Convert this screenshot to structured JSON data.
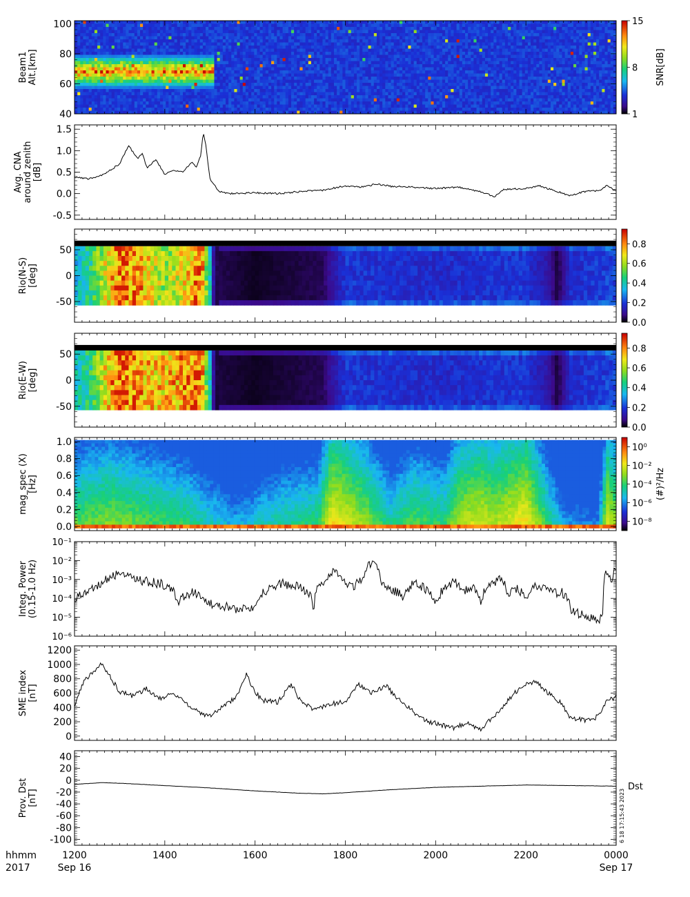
{
  "time_axis": {
    "row1_label": "hhmm",
    "row2_label": "2017",
    "ticks": [
      {
        "hour": 12,
        "label": "1200",
        "date": "Sep 16"
      },
      {
        "hour": 14,
        "label": "1400",
        "date": ""
      },
      {
        "hour": 16,
        "label": "1600",
        "date": ""
      },
      {
        "hour": 18,
        "label": "1800",
        "date": ""
      },
      {
        "hour": 20,
        "label": "2000",
        "date": ""
      },
      {
        "hour": 22,
        "label": "2200",
        "date": ""
      },
      {
        "hour": 24,
        "label": "0000",
        "date": "Sep 17"
      }
    ]
  },
  "annotation": {
    "stamp": "6 18 17:15:43 2023",
    "dst_tag": "Dst"
  },
  "chart_data": [
    {
      "type": "heatmap",
      "id": "beam1",
      "ylabel": [
        "Beam1",
        "Alt.[km]"
      ],
      "x_range": [
        12,
        24
      ],
      "ylim": [
        40,
        102
      ],
      "yticks": [
        40,
        60,
        80,
        100
      ],
      "colorbar": {
        "label": "SNR[dB]",
        "range": [
          1,
          15
        ],
        "ticks": [
          {
            "v": 1,
            "label": "1"
          },
          {
            "v": 8,
            "label": "8"
          },
          {
            "v": 15,
            "label": "15"
          }
        ]
      },
      "features": [
        {
          "x": [
            12.0,
            15.1
          ],
          "y": [
            58,
            78
          ],
          "level": "high",
          "desc_hidden": true
        }
      ]
    },
    {
      "type": "line",
      "id": "cna",
      "ylabel": [
        "Avg. CNA",
        "around zenith",
        "[dB]"
      ],
      "x_range": [
        12,
        24
      ],
      "ylim": [
        -0.6,
        1.6
      ],
      "yticks": [
        {
          "v": -0.5,
          "label": "-0.5"
        },
        {
          "v": 0.0,
          "label": "0.0"
        },
        {
          "v": 0.5,
          "label": "0.5"
        },
        {
          "v": 1.0,
          "label": "1.0"
        },
        {
          "v": 1.5,
          "label": "1.5"
        }
      ],
      "x": [
        12.0,
        12.3,
        12.6,
        12.8,
        13.0,
        13.2,
        13.4,
        13.5,
        13.6,
        13.8,
        14.0,
        14.2,
        14.4,
        14.6,
        14.7,
        14.8,
        14.85,
        14.9,
        15.0,
        15.1,
        15.2,
        15.4,
        16.0,
        16.5,
        17.0,
        17.5,
        18.0,
        18.3,
        18.7,
        19.0,
        19.5,
        20.0,
        20.5,
        21.0,
        21.3,
        21.5,
        22.0,
        22.3,
        22.6,
        23.0,
        23.3,
        23.6,
        23.8,
        24.0
      ],
      "y": [
        0.38,
        0.35,
        0.42,
        0.55,
        0.7,
        1.12,
        0.8,
        0.95,
        0.6,
        0.8,
        0.45,
        0.55,
        0.5,
        0.75,
        0.6,
        0.9,
        1.42,
        1.2,
        0.35,
        0.2,
        0.05,
        0.0,
        0.02,
        0.0,
        0.05,
        0.08,
        0.18,
        0.15,
        0.22,
        0.17,
        0.15,
        0.12,
        0.15,
        0.05,
        -0.08,
        0.1,
        0.12,
        0.18,
        0.08,
        -0.05,
        0.05,
        0.07,
        0.18,
        0.06
      ]
    },
    {
      "type": "heatmap",
      "id": "rio_ns",
      "ylabel": [
        "Rio(N-S)",
        "[deg]"
      ],
      "x_range": [
        12,
        24
      ],
      "ylim": [
        -90,
        90
      ],
      "data_y": [
        -57,
        57
      ],
      "yticks": [
        {
          "v": -50,
          "label": "-50"
        },
        {
          "v": 0,
          "label": "0"
        },
        {
          "v": 50,
          "label": "50"
        }
      ],
      "colorbar": {
        "label": "",
        "range": [
          0,
          0.95
        ],
        "ticks": [
          {
            "v": 0.0,
            "label": "0.0"
          },
          {
            "v": 0.2,
            "label": "0.2"
          },
          {
            "v": 0.4,
            "label": "0.4"
          },
          {
            "v": 0.6,
            "label": "0.6"
          },
          {
            "v": 0.8,
            "label": "0.8"
          }
        ]
      },
      "x_profile": [
        12.0,
        12.4,
        12.8,
        13.0,
        13.5,
        14.0,
        14.5,
        14.8,
        15.0,
        15.1,
        16.0,
        17.5,
        18.0,
        20.0,
        22.0,
        22.5,
        22.7,
        23.0,
        24.0
      ],
      "v_profile": [
        0.35,
        0.5,
        0.75,
        0.9,
        0.8,
        0.6,
        0.75,
        0.9,
        0.4,
        0.05,
        0.02,
        0.05,
        0.2,
        0.18,
        0.2,
        0.12,
        0.03,
        0.18,
        0.22
      ]
    },
    {
      "type": "heatmap",
      "id": "rio_ew",
      "ylabel": [
        "Rio(E-W)",
        "[deg]"
      ],
      "x_range": [
        12,
        24
      ],
      "ylim": [
        -90,
        90
      ],
      "data_y": [
        -57,
        57
      ],
      "yticks": [
        {
          "v": -50,
          "label": "-50"
        },
        {
          "v": 0,
          "label": "0"
        },
        {
          "v": 50,
          "label": "50"
        }
      ],
      "colorbar": {
        "label": "",
        "range": [
          0,
          0.95
        ],
        "ticks": [
          {
            "v": 0.0,
            "label": "0.0"
          },
          {
            "v": 0.2,
            "label": "0.2"
          },
          {
            "v": 0.4,
            "label": "0.4"
          },
          {
            "v": 0.6,
            "label": "0.6"
          },
          {
            "v": 0.8,
            "label": "0.8"
          }
        ]
      },
      "x_profile": [
        12.0,
        12.4,
        12.8,
        13.0,
        13.5,
        14.0,
        14.5,
        14.8,
        15.0,
        15.1,
        16.0,
        17.5,
        18.0,
        20.0,
        22.0,
        22.5,
        22.7,
        23.0,
        24.0
      ],
      "v_profile": [
        0.4,
        0.5,
        0.8,
        0.92,
        0.8,
        0.75,
        0.85,
        0.9,
        0.4,
        0.04,
        0.02,
        0.05,
        0.2,
        0.18,
        0.2,
        0.12,
        0.03,
        0.18,
        0.22
      ]
    },
    {
      "type": "heatmap",
      "id": "mag_spec",
      "ylabel": [
        "mag_spec (X)",
        "[Hz]"
      ],
      "x_range": [
        12,
        24
      ],
      "ylim": [
        -0.05,
        1.05
      ],
      "yticks": [
        {
          "v": 0.0,
          "label": "0.0"
        },
        {
          "v": 0.2,
          "label": "0.2"
        },
        {
          "v": 0.4,
          "label": "0.4"
        },
        {
          "v": 0.6,
          "label": "0.6"
        },
        {
          "v": 0.8,
          "label": "0.8"
        },
        {
          "v": 1.0,
          "label": "1.0"
        }
      ],
      "colorbar": {
        "label": "(#)²/Hz",
        "log_range": [
          -9,
          1
        ],
        "ticks": [
          {
            "v": 0,
            "label": "10⁰"
          },
          {
            "v": -2,
            "label": "10⁻²"
          },
          {
            "v": -4,
            "label": "10⁻⁴"
          },
          {
            "v": -6,
            "label": "10⁻⁶"
          },
          {
            "v": -8,
            "label": "10⁻⁸"
          }
        ]
      },
      "x_profile": [
        12.0,
        12.8,
        13.6,
        14.5,
        15.5,
        16.5,
        17.4,
        17.7,
        18.0,
        18.5,
        19.0,
        19.5,
        20.2,
        20.5,
        21.0,
        21.3,
        22.0,
        22.5,
        22.8,
        23.3,
        23.6,
        23.8,
        24.0
      ],
      "v_profile": [
        0.55,
        0.6,
        0.55,
        0.5,
        0.35,
        0.45,
        0.5,
        0.75,
        0.7,
        0.6,
        0.45,
        0.55,
        0.5,
        0.65,
        0.7,
        0.65,
        0.75,
        0.5,
        0.35,
        0.3,
        0.3,
        0.7,
        0.6
      ]
    },
    {
      "type": "line",
      "id": "integ_power",
      "ylabel": [
        "Integ. Power",
        "(0.15-1.0 Hz)"
      ],
      "x_range": [
        12,
        24
      ],
      "log_y": true,
      "ylim": [
        1e-06,
        0.1
      ],
      "yticks": [
        {
          "e": -6,
          "label": "10⁻⁶"
        },
        {
          "e": -5,
          "label": "10⁻⁵"
        },
        {
          "e": -4,
          "label": "10⁻⁴"
        },
        {
          "e": -3,
          "label": "10⁻³"
        },
        {
          "e": -2,
          "label": "10⁻²"
        },
        {
          "e": -1,
          "label": "10⁻¹"
        }
      ],
      "x": [
        12.0,
        12.3,
        12.6,
        13.0,
        13.3,
        13.6,
        14.0,
        14.3,
        14.6,
        15.0,
        15.3,
        15.6,
        16.0,
        16.3,
        16.6,
        17.0,
        17.3,
        17.6,
        17.8,
        18.0,
        18.2,
        18.4,
        18.6,
        18.8,
        19.0,
        19.3,
        19.5,
        19.8,
        20.0,
        20.2,
        20.4,
        20.6,
        20.8,
        21.0,
        21.2,
        21.4,
        21.6,
        21.8,
        22.0,
        22.2,
        22.4,
        22.6,
        22.8,
        23.0,
        23.2,
        23.4,
        23.6,
        23.7,
        23.8,
        23.9,
        24.0
      ],
      "y": [
        8e-05,
        0.0002,
        0.0006,
        0.002,
        0.001,
        0.0008,
        0.0005,
        6e-05,
        0.0002,
        5e-05,
        4e-05,
        2e-05,
        4e-05,
        0.0003,
        0.0006,
        0.0004,
        2e-05,
        0.001,
        0.003,
        0.0004,
        0.0005,
        0.001,
        0.009,
        0.0005,
        0.0003,
        0.0001,
        0.0006,
        0.0003,
        5e-05,
        0.0003,
        0.0008,
        0.0002,
        0.0004,
        3e-05,
        0.0005,
        0.001,
        0.0002,
        0.0003,
        0.0001,
        0.0004,
        0.0003,
        0.0002,
        0.0002,
        2e-05,
        1.5e-05,
        1e-05,
        7e-06,
        1e-05,
        0.003,
        0.001,
        0.004
      ]
    },
    {
      "type": "line",
      "id": "sme",
      "ylabel": [
        "SME index",
        "[nT]"
      ],
      "x_range": [
        12,
        24
      ],
      "ylim": [
        -60,
        1260
      ],
      "yticks": [
        {
          "v": 0,
          "label": "0"
        },
        {
          "v": 200,
          "label": "200"
        },
        {
          "v": 400,
          "label": "400"
        },
        {
          "v": 600,
          "label": "600"
        },
        {
          "v": 800,
          "label": "800"
        },
        {
          "v": 1000,
          "label": "1000"
        },
        {
          "v": 1200,
          "label": "1200"
        }
      ],
      "x": [
        12.0,
        12.2,
        12.4,
        12.6,
        12.8,
        13.0,
        13.3,
        13.6,
        13.9,
        14.2,
        14.5,
        14.8,
        15.0,
        15.3,
        15.6,
        15.8,
        16.0,
        16.2,
        16.5,
        16.8,
        17.0,
        17.3,
        17.6,
        18.0,
        18.3,
        18.6,
        18.9,
        19.2,
        19.5,
        19.8,
        20.1,
        20.4,
        20.7,
        21.0,
        21.3,
        21.6,
        21.9,
        22.2,
        22.5,
        22.8,
        23.0,
        23.2,
        23.5,
        23.8,
        24.0
      ],
      "y": [
        420,
        760,
        900,
        1000,
        820,
        620,
        560,
        660,
        530,
        600,
        450,
        300,
        290,
        410,
        560,
        870,
        600,
        500,
        470,
        730,
        500,
        360,
        440,
        480,
        720,
        600,
        700,
        500,
        340,
        210,
        160,
        110,
        180,
        100,
        270,
        500,
        700,
        760,
        600,
        450,
        240,
        230,
        220,
        480,
        560
      ]
    },
    {
      "type": "line",
      "id": "dst",
      "ylabel": [
        "Prov. Dst",
        "[nT]"
      ],
      "x_range": [
        12,
        24
      ],
      "ylim": [
        -110,
        50
      ],
      "yticks": [
        {
          "v": -100,
          "label": "-100"
        },
        {
          "v": -80,
          "label": "-80"
        },
        {
          "v": -60,
          "label": "-60"
        },
        {
          "v": -40,
          "label": "-40"
        },
        {
          "v": -20,
          "label": "-20"
        },
        {
          "v": 0,
          "label": "0"
        },
        {
          "v": 20,
          "label": "20"
        },
        {
          "v": 40,
          "label": "40"
        }
      ],
      "x": [
        12.0,
        12.6,
        13.0,
        14.0,
        15.0,
        16.0,
        17.0,
        17.5,
        18.0,
        19.0,
        20.0,
        21.0,
        22.0,
        23.0,
        24.0
      ],
      "y": [
        -7,
        -4,
        -5,
        -9,
        -13,
        -18,
        -22,
        -23,
        -21,
        -16,
        -12,
        -10,
        -8,
        -9,
        -10
      ]
    }
  ]
}
